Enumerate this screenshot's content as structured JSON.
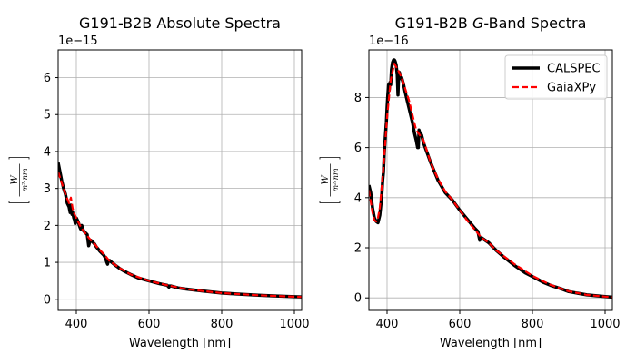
{
  "chart_data": [
    {
      "type": "line",
      "title": "G191-B2B Absolute Spectra",
      "xlabel": "Wavelength [nm]",
      "ylabel_num": "W",
      "ylabel_den": "m²·nm",
      "offset_text": "1e−15",
      "xlim": [
        350,
        1020
      ],
      "ylim": [
        -0.3,
        6.75
      ],
      "xticks": [
        400,
        600,
        800,
        1000
      ],
      "yticks": [
        0,
        1,
        2,
        3,
        4,
        5,
        6
      ],
      "grid": true,
      "legend": null,
      "series": [
        {
          "color": "#000000",
          "style": "solid",
          "x": [
            350,
            355,
            360,
            365,
            370,
            375,
            380,
            383,
            385,
            388,
            390,
            393,
            395,
            397,
            400,
            405,
            410,
            412,
            415,
            420,
            425,
            430,
            434,
            438,
            440,
            445,
            450,
            455,
            460,
            465,
            470,
            475,
            480,
            484,
            486,
            488,
            492,
            495,
            500,
            510,
            520,
            530,
            550,
            570,
            600,
            630,
            650,
            655,
            656,
            660,
            680,
            700,
            750,
            800,
            850,
            900,
            950,
            1000,
            1020
          ],
          "y": [
            3.7,
            3.45,
            3.2,
            3.0,
            2.85,
            2.6,
            2.5,
            2.35,
            2.55,
            2.3,
            2.35,
            2.2,
            2.15,
            2.05,
            2.2,
            2.1,
            1.95,
            1.9,
            2.0,
            1.85,
            1.8,
            1.75,
            1.45,
            1.6,
            1.6,
            1.55,
            1.5,
            1.42,
            1.36,
            1.3,
            1.25,
            1.2,
            1.12,
            1.0,
            0.95,
            1.05,
            1.05,
            1.02,
            0.98,
            0.9,
            0.83,
            0.77,
            0.67,
            0.58,
            0.5,
            0.42,
            0.38,
            0.33,
            0.36,
            0.36,
            0.31,
            0.28,
            0.22,
            0.17,
            0.14,
            0.11,
            0.09,
            0.07,
            0.065
          ]
        },
        {
          "color": "#ff0000",
          "style": "dashed",
          "x": [
            350,
            360,
            370,
            380,
            385,
            390,
            395,
            400,
            410,
            420,
            430,
            440,
            450,
            460,
            470,
            480,
            490,
            500,
            520,
            550,
            600,
            650,
            700,
            750,
            800,
            850,
            900,
            950,
            1000,
            1020
          ],
          "y": [
            3.45,
            3.15,
            2.85,
            2.6,
            2.75,
            2.45,
            2.3,
            2.2,
            2.0,
            1.85,
            1.72,
            1.6,
            1.5,
            1.38,
            1.28,
            1.18,
            1.05,
            0.98,
            0.84,
            0.67,
            0.5,
            0.38,
            0.28,
            0.22,
            0.17,
            0.14,
            0.11,
            0.09,
            0.07,
            0.065
          ]
        }
      ]
    },
    {
      "type": "line",
      "title_prefix": "G191-B2B ",
      "title_italic": "G",
      "title_suffix": "-Band Spectra",
      "xlabel": "Wavelength [nm]",
      "ylabel_num": "W",
      "ylabel_den": "m²·nm",
      "offset_text": "1e−16",
      "xlim": [
        350,
        1020
      ],
      "ylim": [
        -0.5,
        9.9
      ],
      "xticks": [
        400,
        600,
        800,
        1000
      ],
      "yticks": [
        0,
        2,
        4,
        6,
        8
      ],
      "grid": true,
      "legend": "top-right",
      "series": [
        {
          "name": "CALSPEC",
          "color": "#000000",
          "style": "solid",
          "x": [
            350,
            355,
            360,
            365,
            370,
            375,
            380,
            385,
            388,
            390,
            392,
            395,
            398,
            400,
            402,
            404,
            406,
            408,
            410,
            412,
            415,
            418,
            420,
            422,
            425,
            428,
            430,
            432,
            434,
            436,
            438,
            440,
            445,
            450,
            455,
            460,
            465,
            470,
            475,
            480,
            484,
            486,
            488,
            490,
            495,
            500,
            520,
            540,
            560,
            580,
            600,
            620,
            640,
            650,
            655,
            656,
            660,
            680,
            700,
            720,
            750,
            780,
            800,
            830,
            850,
            880,
            900,
            950,
            1000,
            1020
          ],
          "y": [
            4.5,
            4.2,
            3.6,
            3.2,
            3.05,
            3.0,
            3.3,
            4.0,
            4.7,
            5.0,
            5.7,
            6.4,
            7.0,
            7.6,
            8.1,
            8.5,
            8.3,
            8.6,
            8.5,
            9.1,
            9.4,
            9.5,
            9.5,
            9.45,
            9.3,
            8.9,
            8.1,
            8.9,
            9.0,
            8.9,
            8.75,
            8.8,
            8.55,
            8.2,
            7.9,
            7.6,
            7.3,
            7.0,
            6.6,
            6.3,
            6.0,
            6.0,
            6.7,
            6.6,
            6.5,
            6.2,
            5.4,
            4.7,
            4.2,
            3.9,
            3.5,
            3.15,
            2.8,
            2.65,
            2.3,
            2.4,
            2.4,
            2.2,
            1.9,
            1.65,
            1.3,
            1.0,
            0.85,
            0.62,
            0.5,
            0.36,
            0.25,
            0.12,
            0.05,
            0.03
          ]
        },
        {
          "name": "GaiaXPy",
          "color": "#ff0000",
          "style": "dashed",
          "x": [
            350,
            360,
            365,
            370,
            375,
            380,
            390,
            400,
            410,
            420,
            430,
            440,
            450,
            460,
            470,
            480,
            490,
            500,
            520,
            540,
            560,
            580,
            600,
            620,
            640,
            660,
            680,
            700,
            750,
            800,
            850,
            900,
            950,
            1000,
            1020
          ],
          "y": [
            4.3,
            3.4,
            3.1,
            3.05,
            3.2,
            3.6,
            5.2,
            7.2,
            8.7,
            9.35,
            9.1,
            8.8,
            8.35,
            7.9,
            7.3,
            6.7,
            6.5,
            6.3,
            5.4,
            4.75,
            4.25,
            3.9,
            3.5,
            3.1,
            2.75,
            2.4,
            2.2,
            1.9,
            1.35,
            0.88,
            0.52,
            0.26,
            0.12,
            0.05,
            0.03
          ]
        }
      ]
    }
  ]
}
